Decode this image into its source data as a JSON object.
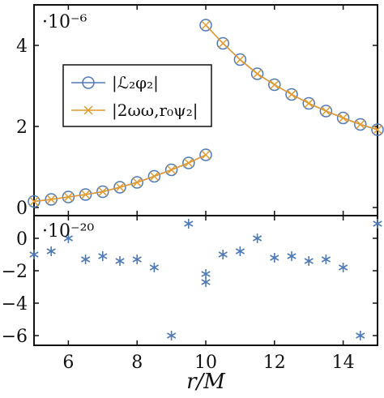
{
  "chart_data": [
    {
      "type": "line",
      "panel": "top",
      "scale_label": "·10⁻⁶",
      "x": [
        5.0,
        5.5,
        6.0,
        6.5,
        7.0,
        7.5,
        8.0,
        8.5,
        9.0,
        9.5,
        10.0
      ],
      "x2": [
        10.0,
        10.5,
        11.0,
        11.5,
        12.0,
        12.5,
        13.0,
        13.5,
        14.0,
        14.5,
        15.0
      ],
      "series": [
        {
          "name": "|ℒ₂φ₂|",
          "marker": "circle",
          "color": "#4f7ab8",
          "segments": [
            [
              0.15,
              0.2,
              0.26,
              0.32,
              0.39,
              0.5,
              0.62,
              0.77,
              0.93,
              1.1,
              1.3
            ],
            [
              4.5,
              4.05,
              3.65,
              3.3,
              3.03,
              2.79,
              2.57,
              2.38,
              2.21,
              2.05,
              1.92
            ]
          ]
        },
        {
          "name": "|2ωω,r₀ψ₂|",
          "marker": "cross",
          "color": "#e39a2c",
          "segments": [
            [
              0.15,
              0.2,
              0.26,
              0.32,
              0.39,
              0.5,
              0.62,
              0.77,
              0.93,
              1.1,
              1.3
            ],
            [
              4.5,
              4.05,
              3.65,
              3.3,
              3.03,
              2.79,
              2.57,
              2.38,
              2.21,
              2.05,
              1.92
            ]
          ]
        }
      ],
      "xlim": [
        5,
        15
      ],
      "ylim": [
        -0.2,
        5.0
      ],
      "yticks": [
        "0",
        "2",
        "4"
      ],
      "legend_position": "center-left"
    },
    {
      "type": "scatter",
      "panel": "bottom",
      "scale_label": "·10⁻²⁰",
      "marker": "asterisk",
      "color": "#4f7ab8",
      "x": [
        5.0,
        5.5,
        6.0,
        6.5,
        7.0,
        7.5,
        8.0,
        8.5,
        9.0,
        9.5,
        10.0,
        10.0,
        10.5,
        11.0,
        11.5,
        12.0,
        12.5,
        13.0,
        13.5,
        14.0,
        14.5,
        15.0
      ],
      "y": [
        -1.0,
        -0.8,
        0.0,
        -1.3,
        -1.1,
        -1.4,
        -1.3,
        -1.8,
        -6.0,
        0.9,
        -2.2,
        -2.7,
        -1.0,
        -0.8,
        0.0,
        -1.2,
        -1.1,
        -1.4,
        -1.3,
        -1.8,
        -6.0,
        0.9
      ],
      "xlim": [
        5,
        15
      ],
      "ylim": [
        -6.6,
        1.4
      ],
      "yticks": [
        "0",
        "−2",
        "−4",
        "−6"
      ]
    }
  ],
  "axes": {
    "xticks": [
      "6",
      "8",
      "10",
      "12",
      "14"
    ],
    "xlabel": "r/M"
  }
}
